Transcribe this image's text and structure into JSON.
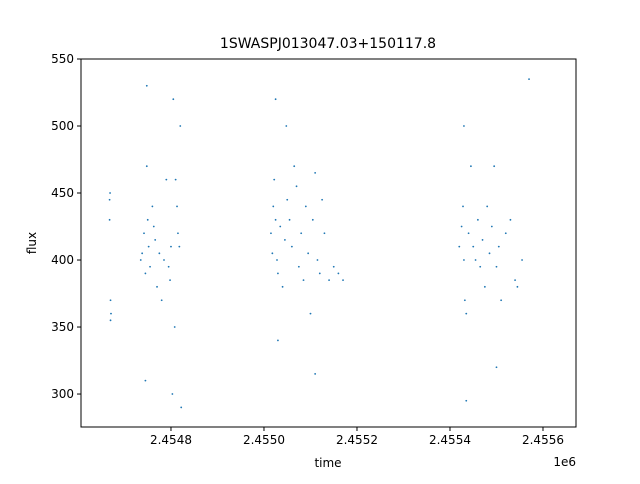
{
  "chart_data": {
    "type": "scatter",
    "title": "1SWASPJ013047.03+150117.8",
    "x_label": "time",
    "y_label": "flux",
    "x_offset_label": "1e6",
    "color": "#1f77b4",
    "xlim": [
      2454606.5,
      2455671
    ],
    "ylim": [
      275.4,
      550
    ],
    "xticks": [
      {
        "value": 2454800,
        "label": "2.4548"
      },
      {
        "value": 2455000,
        "label": "2.4550"
      },
      {
        "value": 2455200,
        "label": "2.4552"
      },
      {
        "value": 2455400,
        "label": "2.4554"
      },
      {
        "value": 2455600,
        "label": "2.4556"
      }
    ],
    "yticks": [
      300,
      350,
      400,
      450,
      500,
      550
    ],
    "x": [
      2454668,
      2454668,
      2454670,
      2454670,
      2454669,
      2454671,
      2454735,
      2454738,
      2454742,
      2454745,
      2454748,
      2454750,
      2454752,
      2454755,
      2454760,
      2454763,
      2454766,
      2454770,
      2454775,
      2454780,
      2454785,
      2454790,
      2454795,
      2454798,
      2454800,
      2454803,
      2454805,
      2454808,
      2454810,
      2454813,
      2454815,
      2454818,
      2454820,
      2454822,
      2454748,
      2454745,
      2455015,
      2455018,
      2455020,
      2455022,
      2455025,
      2455028,
      2455030,
      2455035,
      2455040,
      2455045,
      2455048,
      2455050,
      2455055,
      2455060,
      2455065,
      2455070,
      2455075,
      2455080,
      2455085,
      2455090,
      2455095,
      2455100,
      2455105,
      2455110,
      2455115,
      2455120,
      2455125,
      2455130,
      2455140,
      2455150,
      2455160,
      2455170,
      2455025,
      2455030,
      2455110,
      2455420,
      2455425,
      2455428,
      2455430,
      2455432,
      2455435,
      2455440,
      2455445,
      2455450,
      2455455,
      2455460,
      2455465,
      2455470,
      2455475,
      2455480,
      2455485,
      2455490,
      2455495,
      2455500,
      2455505,
      2455510,
      2455520,
      2455530,
      2455540,
      2455545,
      2455555,
      2455570,
      2455430,
      2455435,
      2455500
    ],
    "y": [
      445,
      430,
      370,
      355,
      450,
      360,
      400,
      405,
      420,
      390,
      470,
      430,
      410,
      395,
      440,
      425,
      415,
      380,
      405,
      370,
      400,
      460,
      395,
      385,
      410,
      300,
      520,
      350,
      460,
      440,
      420,
      410,
      500,
      290,
      530,
      310,
      420,
      405,
      440,
      460,
      430,
      400,
      390,
      425,
      380,
      415,
      500,
      445,
      430,
      410,
      470,
      455,
      395,
      420,
      385,
      440,
      405,
      360,
      430,
      465,
      400,
      390,
      445,
      420,
      385,
      395,
      390,
      385,
      520,
      340,
      315,
      410,
      425,
      440,
      400,
      370,
      360,
      420,
      470,
      410,
      400,
      430,
      395,
      415,
      380,
      440,
      405,
      425,
      470,
      395,
      410,
      370,
      420,
      430,
      385,
      380,
      400,
      535,
      500,
      295,
      320
    ]
  }
}
